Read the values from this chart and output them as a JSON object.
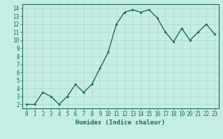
{
  "x": [
    0,
    1,
    2,
    3,
    4,
    5,
    6,
    7,
    8,
    9,
    10,
    11,
    12,
    13,
    14,
    15,
    16,
    17,
    18,
    19,
    20,
    21,
    22,
    23
  ],
  "y": [
    2,
    2,
    3.5,
    3,
    2,
    3,
    4.5,
    3.5,
    4.5,
    6.5,
    8.5,
    12,
    13.5,
    13.8,
    13.5,
    13.8,
    12.8,
    11,
    9.8,
    11.5,
    10,
    11,
    12,
    10.8
  ],
  "line_color": "#1a6b5a",
  "marker_color": "#1a6b5a",
  "bg_color": "#c5ede5",
  "grid_color_major": "#acd8cf",
  "grid_color_minor": "#bce4db",
  "xlabel": "Humidex (Indice chaleur)",
  "ylim": [
    1.5,
    14.5
  ],
  "xlim": [
    -0.5,
    23.5
  ],
  "yticks": [
    2,
    3,
    4,
    5,
    6,
    7,
    8,
    9,
    10,
    11,
    12,
    13,
    14
  ],
  "xticks": [
    0,
    1,
    2,
    3,
    4,
    5,
    6,
    7,
    8,
    9,
    10,
    11,
    12,
    13,
    14,
    15,
    16,
    17,
    18,
    19,
    20,
    21,
    22,
    23
  ],
  "tick_color": "#1a6b5a",
  "label_color": "#1a6b5a",
  "font_size": 5.5,
  "xlabel_fontsize": 6.5,
  "marker_size": 2.5,
  "line_width": 1.0
}
